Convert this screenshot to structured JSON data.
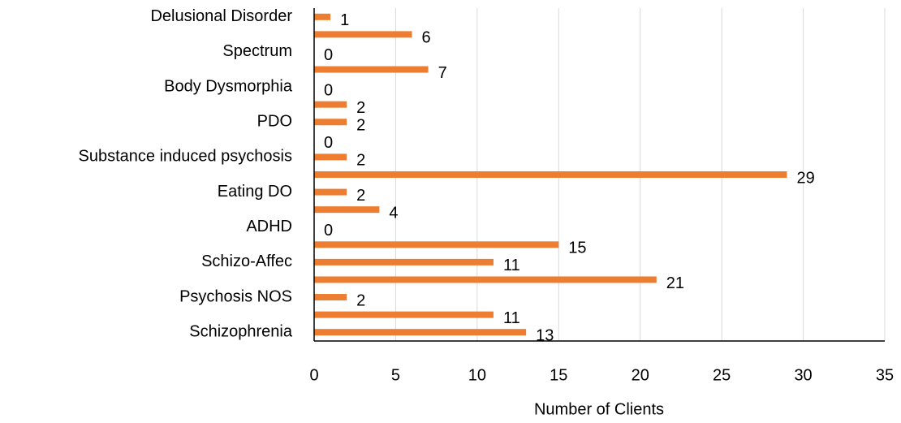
{
  "chart_data": {
    "type": "barh",
    "categories": [
      "Delusional Disorder",
      null,
      "Spectrum",
      null,
      "Body Dysmorphia",
      null,
      "PDO",
      null,
      "Substance induced  psychosis",
      null,
      "Eating DO",
      null,
      "ADHD",
      null,
      "Schizo-Affec",
      null,
      "Psychosis NOS",
      null,
      "Schizophrenia"
    ],
    "values": [
      1,
      6,
      0,
      7,
      0,
      2,
      2,
      0,
      2,
      29,
      2,
      4,
      0,
      15,
      11,
      21,
      2,
      11,
      13
    ],
    "color": "#ed7d31",
    "xlabel": "Number of Clients",
    "xlim": [
      0,
      35
    ],
    "xticks": [
      0,
      5,
      10,
      15,
      20,
      25,
      30,
      35
    ],
    "grid": true
  }
}
